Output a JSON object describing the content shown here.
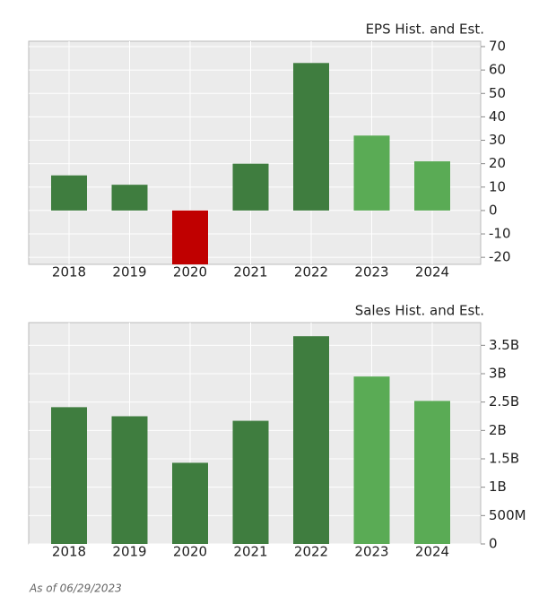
{
  "chart_data": [
    {
      "type": "bar",
      "title": "EPS Hist. and Est.",
      "categories": [
        "2018",
        "2019",
        "2020",
        "2021",
        "2022",
        "2023",
        "2024"
      ],
      "values": [
        15,
        11,
        -23,
        20,
        63,
        32,
        21
      ],
      "colors": [
        "#3f7d3f",
        "#3f7d3f",
        "#c00000",
        "#3f7d3f",
        "#3f7d3f",
        "#5aab55",
        "#5aab55"
      ],
      "ylim": [
        -23,
        72.3
      ],
      "yticks": [
        -20,
        -10,
        0,
        10,
        20,
        30,
        40,
        50,
        60,
        70
      ],
      "grid": true
    },
    {
      "type": "bar",
      "title": "Sales Hist. and Est.",
      "categories": [
        "2018",
        "2019",
        "2020",
        "2021",
        "2022",
        "2023",
        "2024"
      ],
      "values": [
        2410000000,
        2250000000,
        1430000000,
        2170000000,
        3660000000,
        2950000000,
        2520000000
      ],
      "colors": [
        "#3f7d3f",
        "#3f7d3f",
        "#3f7d3f",
        "#3f7d3f",
        "#3f7d3f",
        "#5aab55",
        "#5aab55"
      ],
      "ylim": [
        0,
        3900000000
      ],
      "yticks": [
        0,
        {
          "value": 500000000,
          "label": "500M"
        },
        {
          "value": 1000000000,
          "label": "1B"
        },
        {
          "value": 1500000000,
          "label": "1.5B"
        },
        {
          "value": 2000000000,
          "label": "2B"
        },
        {
          "value": 2500000000,
          "label": "2.5B"
        },
        {
          "value": 3000000000,
          "label": "3B"
        },
        {
          "value": 3500000000,
          "label": "3.5B"
        }
      ],
      "grid": true
    }
  ],
  "note": "As of 06/29/2023"
}
